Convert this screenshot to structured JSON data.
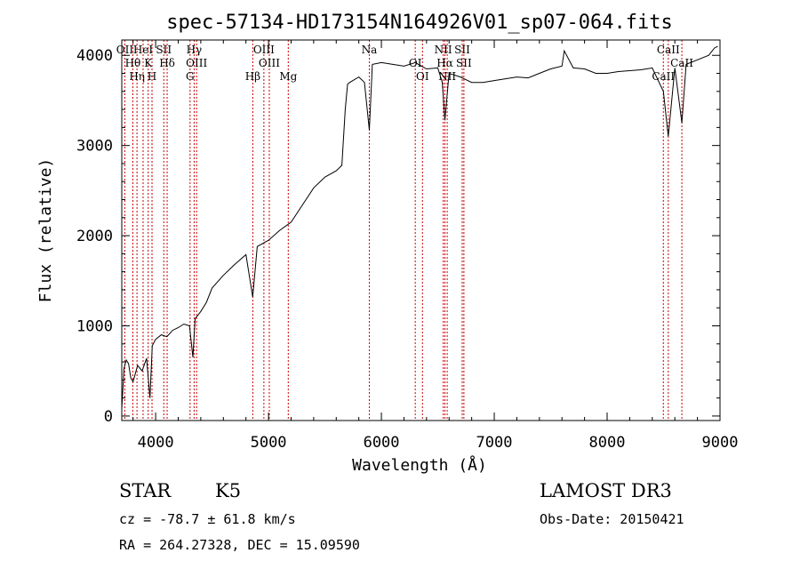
{
  "chart_data": {
    "type": "line",
    "title": "spec-57134-HD173154N164926V01_sp07-064.fits",
    "xlabel": "Wavelength (Å)",
    "ylabel": "Flux (relative)",
    "xlim": [
      3700,
      9000
    ],
    "ylim": [
      -50,
      4170
    ],
    "x_ticks": [
      4000,
      5000,
      6000,
      7000,
      8000,
      9000
    ],
    "x_tick_labels": [
      "4000",
      "5000",
      "6000",
      "7000",
      "8000",
      "9000"
    ],
    "y_ticks": [
      0,
      1000,
      2000,
      3000,
      4000
    ],
    "y_tick_labels": [
      "0",
      "1000",
      "2000",
      "3000",
      "4000"
    ],
    "series": [
      {
        "name": "spectrum",
        "x": [
          3700,
          3720,
          3740,
          3760,
          3780,
          3800,
          3840,
          3880,
          3920,
          3950,
          3970,
          4000,
          4050,
          4100,
          4150,
          4200,
          4250,
          4300,
          4330,
          4350,
          4400,
          4450,
          4500,
          4600,
          4700,
          4800,
          4860,
          4900,
          5000,
          5100,
          5200,
          5300,
          5400,
          5500,
          5600,
          5650,
          5680,
          5700,
          5720,
          5800,
          5850,
          5893,
          5920,
          6000,
          6100,
          6200,
          6300,
          6400,
          6500,
          6540,
          6563,
          6600,
          6700,
          6800,
          6900,
          7000,
          7100,
          7200,
          7300,
          7400,
          7500,
          7600,
          7620,
          7700,
          7800,
          7900,
          8000,
          8100,
          8200,
          8300,
          8400,
          8498,
          8542,
          8600,
          8662,
          8700,
          8800,
          8900,
          8950,
          8980
        ],
        "y": [
          80,
          530,
          620,
          580,
          420,
          380,
          560,
          500,
          640,
          200,
          780,
          850,
          900,
          880,
          950,
          980,
          1020,
          1000,
          650,
          1080,
          1160,
          1260,
          1420,
          1560,
          1680,
          1790,
          1320,
          1880,
          1950,
          2060,
          2150,
          2340,
          2530,
          2650,
          2720,
          2780,
          3400,
          3680,
          3700,
          3760,
          3700,
          3170,
          3900,
          3920,
          3900,
          3880,
          3920,
          3850,
          3860,
          3700,
          3280,
          3800,
          3760,
          3700,
          3700,
          3720,
          3740,
          3760,
          3750,
          3800,
          3850,
          3880,
          4050,
          3860,
          3850,
          3800,
          3800,
          3820,
          3830,
          3840,
          3860,
          3600,
          3100,
          3860,
          3250,
          3900,
          3950,
          4000,
          4080,
          4100
        ]
      }
    ],
    "lines": [
      {
        "label": "OII",
        "wave": 3727
      },
      {
        "label": "Hθ",
        "wave": 3798
      },
      {
        "label": "Hη",
        "wave": 3835
      },
      {
        "label": "HeI",
        "wave": 3889
      },
      {
        "label": "K",
        "wave": 3934
      },
      {
        "label": "H",
        "wave": 3968
      },
      {
        "label": "SII",
        "wave": 4072
      },
      {
        "label": "Hδ",
        "wave": 4102
      },
      {
        "label": "G",
        "wave": 4305
      },
      {
        "label": "Hγ",
        "wave": 4341
      },
      {
        "label": "OIII",
        "wave": 4363
      },
      {
        "label": "Hβ",
        "wave": 4861
      },
      {
        "label": "OIII",
        "wave": 4959
      },
      {
        "label": "OIII",
        "wave": 5007
      },
      {
        "label": "Mg",
        "wave": 5175
      },
      {
        "label": "Na",
        "wave": 5893
      },
      {
        "label": "OI",
        "wave": 6300
      },
      {
        "label": "OI",
        "wave": 6364
      },
      {
        "label": "NII",
        "wave": 6548
      },
      {
        "label": "Hα",
        "wave": 6563
      },
      {
        "label": "NII",
        "wave": 6583
      },
      {
        "label": "SII",
        "wave": 6716
      },
      {
        "label": "SII",
        "wave": 6731
      },
      {
        "label": "CaII",
        "wave": 8498
      },
      {
        "label": "CaII",
        "wave": 8542
      },
      {
        "label": "CaII",
        "wave": 8662
      }
    ]
  },
  "info": {
    "class_label": "STAR",
    "subclass": "K5",
    "survey": "LAMOST DR3",
    "redshift": "cz = -78.7 ± 61.8 km/s",
    "obs_date": "Obs-Date: 20150421",
    "coords": "RA = 264.27328, DEC =  15.09590"
  },
  "colors": {
    "line_marker": "#cc0000",
    "spectrum": "#000000",
    "axes": "#000000"
  }
}
